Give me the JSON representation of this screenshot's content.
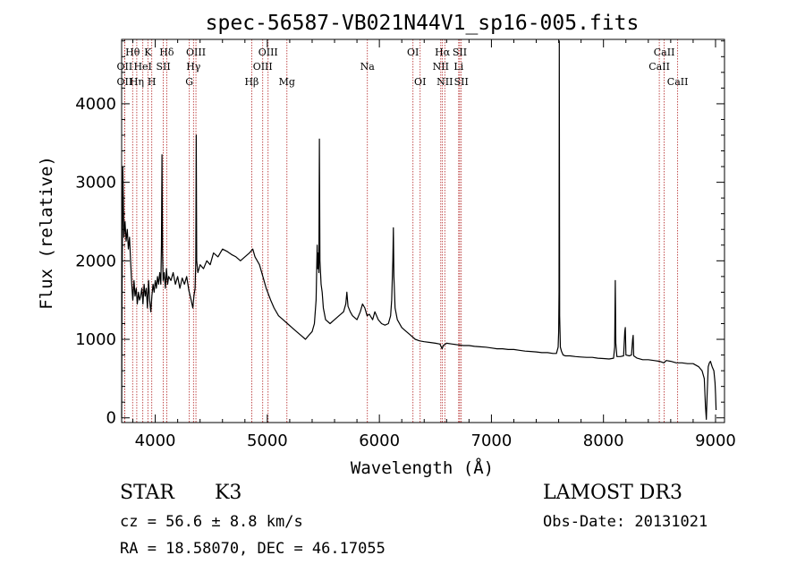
{
  "chart_data": {
    "type": "line",
    "title": "spec-56587-VB021N44V1_sp16-005.fits",
    "xlabel": "Wavelength (Å)",
    "ylabel": "Flux (relative)",
    "xlim": [
      3700,
      9080
    ],
    "ylim": [
      -60,
      4820
    ],
    "x_ticks": [
      4000,
      5000,
      6000,
      7000,
      8000,
      9000
    ],
    "y_ticks": [
      0,
      1000,
      2000,
      3000,
      4000
    ],
    "x_tick_labels": [
      "4000",
      "5000",
      "6000",
      "7000",
      "8000",
      "9000"
    ],
    "y_tick_labels": [
      "0",
      "1000",
      "2000",
      "3000",
      "4000"
    ],
    "series": [
      {
        "name": "flux",
        "color": "#000000",
        "points": [
          [
            3700,
            0
          ],
          [
            3703,
            1500
          ],
          [
            3706,
            2200
          ],
          [
            3710,
            3200
          ],
          [
            3715,
            2800
          ],
          [
            3720,
            2300
          ],
          [
            3730,
            2500
          ],
          [
            3740,
            2250
          ],
          [
            3750,
            2400
          ],
          [
            3760,
            2150
          ],
          [
            3770,
            2300
          ],
          [
            3780,
            2000
          ],
          [
            3790,
            1700
          ],
          [
            3800,
            1500
          ],
          [
            3810,
            1750
          ],
          [
            3820,
            1550
          ],
          [
            3830,
            1650
          ],
          [
            3840,
            1450
          ],
          [
            3850,
            1600
          ],
          [
            3860,
            1500
          ],
          [
            3870,
            1550
          ],
          [
            3880,
            1650
          ],
          [
            3890,
            1450
          ],
          [
            3900,
            1700
          ],
          [
            3910,
            1550
          ],
          [
            3920,
            1650
          ],
          [
            3930,
            1400
          ],
          [
            3940,
            1750
          ],
          [
            3950,
            1500
          ],
          [
            3960,
            1350
          ],
          [
            3970,
            1550
          ],
          [
            3980,
            1700
          ],
          [
            3990,
            1600
          ],
          [
            4000,
            1750
          ],
          [
            4010,
            1650
          ],
          [
            4020,
            1800
          ],
          [
            4030,
            1700
          ],
          [
            4040,
            1850
          ],
          [
            4050,
            1700
          ],
          [
            4055,
            2200
          ],
          [
            4060,
            3350
          ],
          [
            4065,
            2100
          ],
          [
            4070,
            1750
          ],
          [
            4080,
            1850
          ],
          [
            4090,
            1650
          ],
          [
            4100,
            1900
          ],
          [
            4110,
            1700
          ],
          [
            4120,
            1800
          ],
          [
            4140,
            1750
          ],
          [
            4160,
            1850
          ],
          [
            4180,
            1700
          ],
          [
            4200,
            1800
          ],
          [
            4220,
            1650
          ],
          [
            4240,
            1780
          ],
          [
            4260,
            1700
          ],
          [
            4280,
            1800
          ],
          [
            4300,
            1620
          ],
          [
            4320,
            1500
          ],
          [
            4335,
            1400
          ],
          [
            4345,
            1550
          ],
          [
            4355,
            1650
          ],
          [
            4362,
            2000
          ],
          [
            4366,
            3600
          ],
          [
            4370,
            2000
          ],
          [
            4380,
            1850
          ],
          [
            4400,
            1950
          ],
          [
            4430,
            1900
          ],
          [
            4460,
            2000
          ],
          [
            4490,
            1950
          ],
          [
            4520,
            2100
          ],
          [
            4560,
            2050
          ],
          [
            4600,
            2150
          ],
          [
            4640,
            2120
          ],
          [
            4680,
            2080
          ],
          [
            4720,
            2050
          ],
          [
            4760,
            2000
          ],
          [
            4800,
            2050
          ],
          [
            4840,
            2100
          ],
          [
            4870,
            2150
          ],
          [
            4890,
            2050
          ],
          [
            4910,
            2000
          ],
          [
            4930,
            1950
          ],
          [
            4960,
            1800
          ],
          [
            4990,
            1650
          ],
          [
            5030,
            1500
          ],
          [
            5060,
            1400
          ],
          [
            5100,
            1300
          ],
          [
            5140,
            1250
          ],
          [
            5180,
            1200
          ],
          [
            5220,
            1150
          ],
          [
            5260,
            1100
          ],
          [
            5300,
            1050
          ],
          [
            5340,
            1000
          ],
          [
            5370,
            1050
          ],
          [
            5400,
            1100
          ],
          [
            5420,
            1200
          ],
          [
            5435,
            1500
          ],
          [
            5445,
            2200
          ],
          [
            5450,
            1900
          ],
          [
            5455,
            2100
          ],
          [
            5460,
            1850
          ],
          [
            5465,
            3550
          ],
          [
            5470,
            2000
          ],
          [
            5480,
            1700
          ],
          [
            5490,
            1600
          ],
          [
            5500,
            1400
          ],
          [
            5520,
            1250
          ],
          [
            5560,
            1200
          ],
          [
            5600,
            1250
          ],
          [
            5640,
            1300
          ],
          [
            5680,
            1350
          ],
          [
            5700,
            1450
          ],
          [
            5710,
            1600
          ],
          [
            5720,
            1420
          ],
          [
            5740,
            1350
          ],
          [
            5760,
            1300
          ],
          [
            5800,
            1250
          ],
          [
            5830,
            1350
          ],
          [
            5850,
            1450
          ],
          [
            5870,
            1400
          ],
          [
            5890,
            1300
          ],
          [
            5910,
            1320
          ],
          [
            5940,
            1250
          ],
          [
            5960,
            1350
          ],
          [
            5990,
            1250
          ],
          [
            6020,
            1200
          ],
          [
            6050,
            1180
          ],
          [
            6080,
            1200
          ],
          [
            6100,
            1300
          ],
          [
            6110,
            1500
          ],
          [
            6120,
            2000
          ],
          [
            6125,
            2420
          ],
          [
            6130,
            1800
          ],
          [
            6140,
            1400
          ],
          [
            6160,
            1250
          ],
          [
            6200,
            1150
          ],
          [
            6240,
            1100
          ],
          [
            6280,
            1050
          ],
          [
            6320,
            1000
          ],
          [
            6360,
            980
          ],
          [
            6400,
            970
          ],
          [
            6450,
            960
          ],
          [
            6500,
            950
          ],
          [
            6540,
            940
          ],
          [
            6560,
            880
          ],
          [
            6570,
            920
          ],
          [
            6600,
            950
          ],
          [
            6650,
            940
          ],
          [
            6700,
            930
          ],
          [
            6750,
            920
          ],
          [
            6800,
            920
          ],
          [
            6850,
            910
          ],
          [
            6900,
            905
          ],
          [
            6950,
            900
          ],
          [
            7000,
            890
          ],
          [
            7050,
            880
          ],
          [
            7100,
            880
          ],
          [
            7150,
            870
          ],
          [
            7200,
            870
          ],
          [
            7250,
            860
          ],
          [
            7300,
            850
          ],
          [
            7350,
            845
          ],
          [
            7400,
            840
          ],
          [
            7450,
            830
          ],
          [
            7500,
            830
          ],
          [
            7550,
            820
          ],
          [
            7580,
            820
          ],
          [
            7595,
            900
          ],
          [
            7600,
            1100
          ],
          [
            7603,
            1600
          ],
          [
            7606,
            4800
          ],
          [
            7609,
            1300
          ],
          [
            7615,
            900
          ],
          [
            7625,
            850
          ],
          [
            7640,
            800
          ],
          [
            7660,
            790
          ],
          [
            7700,
            790
          ],
          [
            7750,
            780
          ],
          [
            7800,
            775
          ],
          [
            7850,
            770
          ],
          [
            7900,
            770
          ],
          [
            7950,
            760
          ],
          [
            8000,
            755
          ],
          [
            8050,
            750
          ],
          [
            8090,
            760
          ],
          [
            8100,
            900
          ],
          [
            8105,
            1750
          ],
          [
            8110,
            950
          ],
          [
            8120,
            780
          ],
          [
            8150,
            780
          ],
          [
            8180,
            790
          ],
          [
            8190,
            1100
          ],
          [
            8195,
            1150
          ],
          [
            8200,
            800
          ],
          [
            8230,
            790
          ],
          [
            8250,
            800
          ],
          [
            8260,
            1000
          ],
          [
            8265,
            1050
          ],
          [
            8270,
            790
          ],
          [
            8300,
            760
          ],
          [
            8350,
            740
          ],
          [
            8400,
            740
          ],
          [
            8450,
            730
          ],
          [
            8500,
            720
          ],
          [
            8540,
            700
          ],
          [
            8560,
            730
          ],
          [
            8600,
            720
          ],
          [
            8650,
            700
          ],
          [
            8700,
            700
          ],
          [
            8750,
            690
          ],
          [
            8800,
            690
          ],
          [
            8850,
            650
          ],
          [
            8880,
            600
          ],
          [
            8900,
            500
          ],
          [
            8910,
            150
          ],
          [
            8918,
            -20
          ],
          [
            8925,
            300
          ],
          [
            8935,
            650
          ],
          [
            8945,
            700
          ],
          [
            8955,
            720
          ],
          [
            8970,
            650
          ],
          [
            8985,
            600
          ],
          [
            8995,
            450
          ],
          [
            9000,
            300
          ],
          [
            9005,
            100
          ]
        ]
      }
    ],
    "line_identifications": [
      {
        "label": "Hθ",
        "x": 3798,
        "row": 1
      },
      {
        "label": "OII",
        "x": 3727,
        "row": 2
      },
      {
        "label": "OII",
        "x": 3727,
        "row": 3
      },
      {
        "label": "K",
        "x": 3934,
        "row": 1
      },
      {
        "label": "HeI",
        "x": 3889,
        "row": 2
      },
      {
        "label": "Hη",
        "x": 3835,
        "row": 3
      },
      {
        "label": "H",
        "x": 3969,
        "row": 3
      },
      {
        "label": "Hδ",
        "x": 4102,
        "row": 1
      },
      {
        "label": "SII",
        "x": 4072,
        "row": 2
      },
      {
        "label": "OIII",
        "x": 4363,
        "row": 1
      },
      {
        "label": "Hγ",
        "x": 4341,
        "row": 2
      },
      {
        "label": "G",
        "x": 4304,
        "row": 3
      },
      {
        "label": "OIII",
        "x": 5007,
        "row": 1
      },
      {
        "label": "OIII",
        "x": 4959,
        "row": 2
      },
      {
        "label": "Hβ",
        "x": 4861,
        "row": 3
      },
      {
        "label": "Mg",
        "x": 5175,
        "row": 3
      },
      {
        "label": "Na",
        "x": 5893,
        "row": 2
      },
      {
        "label": "OI",
        "x": 6300,
        "row": 1
      },
      {
        "label": "OI",
        "x": 6364,
        "row": 3
      },
      {
        "label": "Hα",
        "x": 6563,
        "row": 1
      },
      {
        "label": "NII",
        "x": 6548,
        "row": 2
      },
      {
        "label": "NII",
        "x": 6584,
        "row": 3
      },
      {
        "label": "SII",
        "x": 6717,
        "row": 1
      },
      {
        "label": "Li",
        "x": 6708,
        "row": 2
      },
      {
        "label": "SII",
        "x": 6731,
        "row": 3
      },
      {
        "label": "CaII",
        "x": 8542,
        "row": 1
      },
      {
        "label": "CaII",
        "x": 8498,
        "row": 2
      },
      {
        "label": "CaII",
        "x": 8662,
        "row": 3
      }
    ],
    "line_marker_color": "#b22222",
    "annotations": {
      "class": "STAR",
      "subclass": "K3",
      "survey": "LAMOST DR3",
      "redshift": "cz = 56.6 ± 8.8 km/s",
      "obs_date": "Obs-Date: 20131021",
      "coords": "RA =  18.58070, DEC =  46.17055"
    }
  }
}
